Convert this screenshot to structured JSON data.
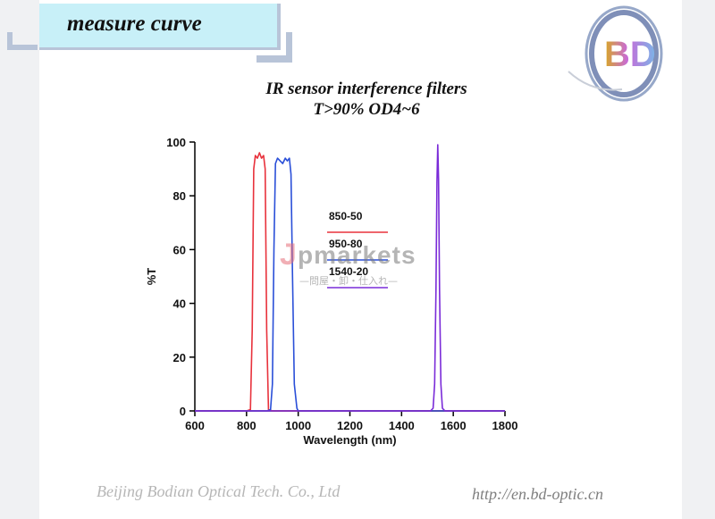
{
  "header": {
    "title": "measure curve"
  },
  "logo": {
    "text": "BD"
  },
  "chart_title": {
    "line1": "IR sensor interference filters",
    "line2": "T>90%  OD4~6"
  },
  "chart_data": {
    "type": "line",
    "title": "IR sensor interference filters T>90%  OD4~6",
    "xlabel": "Wavelength (nm)",
    "ylabel": "%T",
    "xlim": [
      600,
      1800
    ],
    "ylim": [
      0,
      100
    ],
    "xticks": [
      600,
      800,
      1000,
      1200,
      1400,
      1600,
      1800
    ],
    "yticks": [
      0,
      20,
      40,
      60,
      80,
      100
    ],
    "legend_position": "center",
    "series": [
      {
        "name": "850-50",
        "color": "#e8323c",
        "x": [
          600,
          800,
          815,
          822,
          828,
          834,
          842,
          850,
          858,
          866,
          872,
          878,
          885,
          900,
          1800
        ],
        "y": [
          0,
          0,
          0.5,
          30,
          90,
          95,
          94,
          96,
          94,
          95,
          90,
          30,
          0.5,
          0,
          0
        ]
      },
      {
        "name": "950-80",
        "color": "#2a4fd8",
        "x": [
          600,
          880,
          893,
          900,
          906,
          912,
          920,
          930,
          940,
          950,
          958,
          966,
          972,
          978,
          985,
          995,
          1000,
          1800
        ],
        "y": [
          0,
          0,
          0.5,
          10,
          60,
          92,
          94,
          93,
          92,
          94,
          93,
          94,
          88,
          50,
          10,
          1,
          0,
          0
        ]
      },
      {
        "name": "1540-20",
        "color": "#7a2bd8",
        "x": [
          600,
          1512,
          1522,
          1528,
          1533,
          1537,
          1540,
          1543,
          1547,
          1552,
          1558,
          1568,
          1800
        ],
        "y": [
          0,
          0,
          1,
          10,
          45,
          85,
          99,
          86,
          45,
          10,
          1,
          0,
          0
        ]
      }
    ]
  },
  "watermark": {
    "j": "J",
    "text": "pmarkets",
    "sub": "—問屋・卸・仕入れ—"
  },
  "footer": {
    "company": "Beijing Bodian Optical Tech. Co., Ltd",
    "url": "http://en.bd-optic.cn"
  }
}
